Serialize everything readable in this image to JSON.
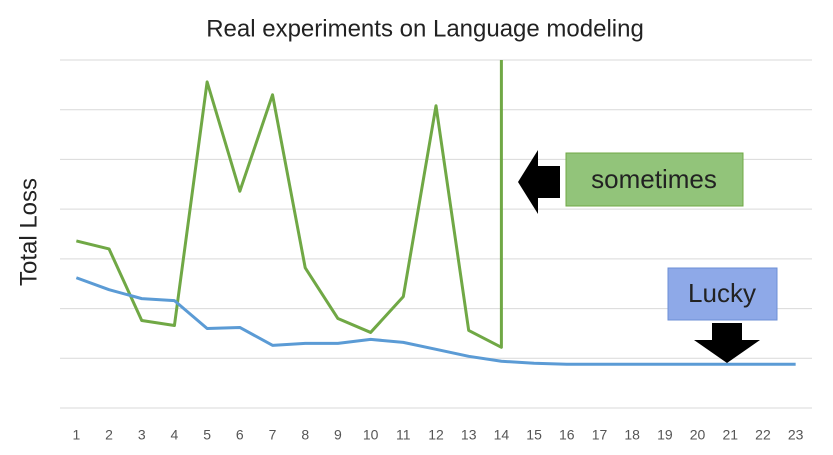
{
  "chart_data": {
    "type": "line",
    "title": "Real experiments on Language modeling",
    "y_label": "Total Loss",
    "x": [
      1,
      2,
      3,
      4,
      5,
      6,
      7,
      8,
      9,
      10,
      11,
      12,
      13,
      14,
      15,
      16,
      17,
      18,
      19,
      20,
      21,
      22,
      23
    ],
    "xlim": [
      0.5,
      23.5
    ],
    "ylim": [
      0,
      7
    ],
    "yticks": [
      0,
      1,
      2,
      3,
      4,
      5,
      6,
      7
    ],
    "grid": true,
    "series": [
      {
        "color": "#70a845",
        "x": [
          1,
          2,
          3,
          4,
          5,
          6,
          7,
          8,
          9,
          10,
          11,
          12,
          13,
          14,
          14
        ],
        "values": [
          3.36,
          3.2,
          1.76,
          1.66,
          6.56,
          4.36,
          6.3,
          2.82,
          1.8,
          1.52,
          2.24,
          6.08,
          1.56,
          1.22,
          7
        ]
      },
      {
        "color": "#5b9bd5",
        "values": [
          2.62,
          2.38,
          2.2,
          2.16,
          1.6,
          1.62,
          1.26,
          1.3,
          1.3,
          1.38,
          1.32,
          1.18,
          1.04,
          0.94,
          0.9,
          0.88,
          0.88,
          0.88,
          0.88,
          0.88,
          0.88,
          0.88,
          0.88
        ]
      }
    ],
    "annotations": [
      "sometimes",
      "Lucky"
    ]
  }
}
